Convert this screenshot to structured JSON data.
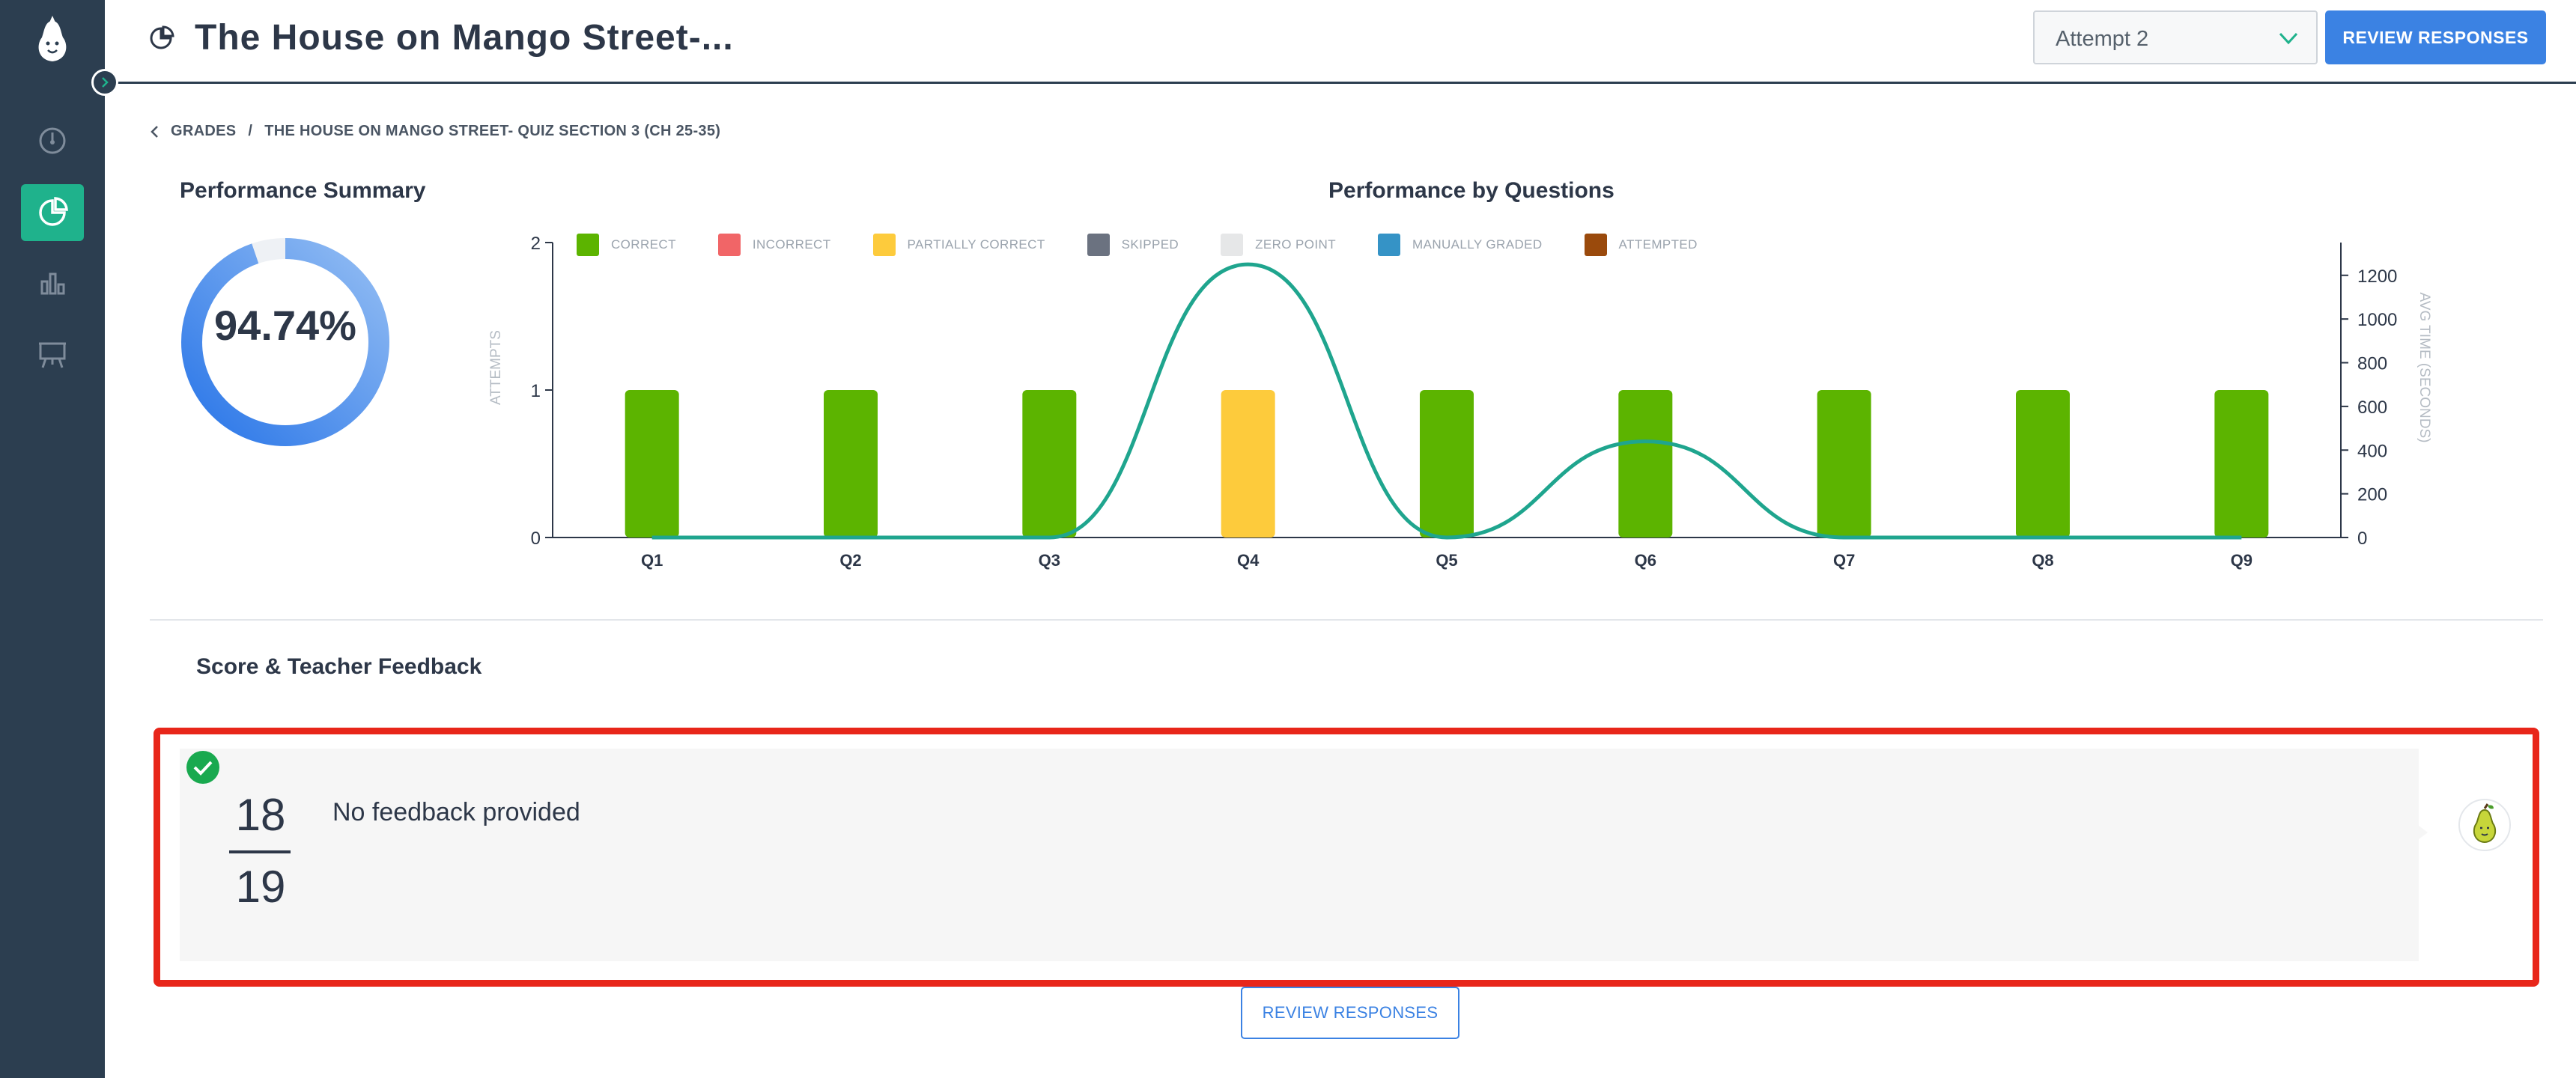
{
  "app": {
    "name": "Pear Deck",
    "accent_color": "#1fb28c",
    "brand_dark": "#2c3e50",
    "primary_blue": "#3b82e3"
  },
  "sidebar": {
    "items": [
      {
        "name": "dashboard",
        "icon": "speedometer-icon",
        "active": false
      },
      {
        "name": "grades",
        "icon": "pie-chart-icon",
        "active": true
      },
      {
        "name": "reports",
        "icon": "bar-chart-icon",
        "active": false
      },
      {
        "name": "classroom",
        "icon": "presentation-board-icon",
        "active": false
      }
    ]
  },
  "header": {
    "title": "The House on Mango Street-...",
    "title_icon": "pie-chart-icon",
    "attempt_select": {
      "value": "Attempt 2"
    },
    "review_button": "REVIEW RESPONSES"
  },
  "breadcrumb": {
    "back": "GRADES",
    "separator": "/",
    "current": "THE HOUSE ON MANGO STREET- QUIZ SECTION 3 (CH 25-35)"
  },
  "performance_summary": {
    "title": "Performance Summary",
    "percent_label": "94.74%",
    "percent_value": 94.74
  },
  "performance_by_questions": {
    "title": "Performance by Questions"
  },
  "chart_data": {
    "type": "bar",
    "title": "Performance by Questions",
    "categories": [
      "Q1",
      "Q2",
      "Q3",
      "Q4",
      "Q5",
      "Q6",
      "Q7",
      "Q8",
      "Q9"
    ],
    "series": [
      {
        "name": "CORRECT",
        "color": "#5cb400",
        "values": [
          1,
          1,
          1,
          0,
          1,
          1,
          1,
          1,
          1
        ]
      },
      {
        "name": "INCORRECT",
        "color": "#f16567",
        "values": [
          0,
          0,
          0,
          0,
          0,
          0,
          0,
          0,
          0
        ]
      },
      {
        "name": "PARTIALLY CORRECT",
        "color": "#fdcb3c",
        "values": [
          0,
          0,
          0,
          1,
          0,
          0,
          0,
          0,
          0
        ]
      },
      {
        "name": "SKIPPED",
        "color": "#6b7280",
        "values": [
          0,
          0,
          0,
          0,
          0,
          0,
          0,
          0,
          0
        ]
      },
      {
        "name": "ZERO POINT",
        "color": "#e6e7e8",
        "values": [
          0,
          0,
          0,
          0,
          0,
          0,
          0,
          0,
          0
        ]
      },
      {
        "name": "MANUALLY GRADED",
        "color": "#3593c6",
        "values": [
          0,
          0,
          0,
          0,
          0,
          0,
          0,
          0,
          0
        ]
      },
      {
        "name": "ATTEMPTED",
        "color": "#9a4a0c",
        "values": [
          0,
          0,
          0,
          0,
          0,
          0,
          0,
          0,
          0
        ]
      }
    ],
    "line": {
      "color": "#1fa58e",
      "values": [
        0,
        0,
        0,
        1250,
        0,
        440,
        0,
        0,
        0
      ]
    },
    "ylabel": "ATTEMPTS",
    "y2label": "AVG TIME (SECONDS)",
    "ylim": [
      0,
      2
    ],
    "y2lim": [
      0,
      1350
    ],
    "yticks": [
      0,
      1,
      2
    ],
    "y2ticks": [
      0,
      200,
      400,
      600,
      800,
      1000,
      1200
    ],
    "legend_position": "top"
  },
  "feedback": {
    "title": "Score & Teacher Feedback",
    "score": "18",
    "total": "19",
    "text": "No feedback provided",
    "status_icon": "check-circle-icon"
  },
  "footer": {
    "review_button": "REVIEW RESPONSES"
  }
}
